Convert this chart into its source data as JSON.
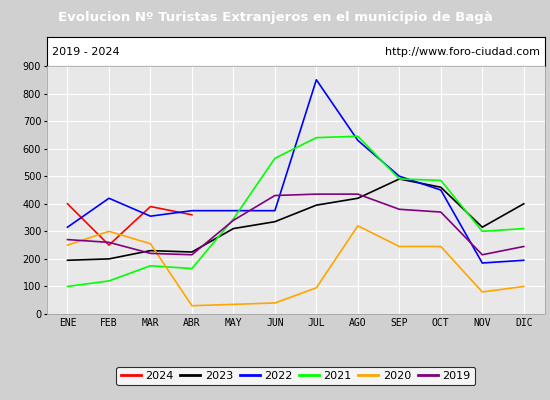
{
  "title": "Evolucion Nº Turistas Extranjeros en el municipio de Bagà",
  "subtitle_left": "2019 - 2024",
  "subtitle_right": "http://www.foro-ciudad.com",
  "xlabel_months": [
    "ENE",
    "FEB",
    "MAR",
    "ABR",
    "MAY",
    "JUN",
    "JUL",
    "AGO",
    "SEP",
    "OCT",
    "NOV",
    "DIC"
  ],
  "ylim": [
    0,
    900
  ],
  "yticks": [
    0,
    100,
    200,
    300,
    400,
    500,
    600,
    700,
    800,
    900
  ],
  "title_bg": "#4a86c8",
  "title_color": "white",
  "plot_bg": "#e8e8e8",
  "grid_color": "white",
  "outer_bg": "#d0d0d0",
  "series": {
    "2024": {
      "color": "red",
      "data": [
        400,
        250,
        390,
        360,
        null,
        null,
        null,
        null,
        null,
        null,
        null,
        null
      ]
    },
    "2023": {
      "color": "black",
      "data": [
        195,
        200,
        230,
        225,
        310,
        335,
        395,
        420,
        490,
        460,
        315,
        400
      ]
    },
    "2022": {
      "color": "blue",
      "data": [
        315,
        420,
        355,
        375,
        375,
        375,
        850,
        630,
        500,
        450,
        185,
        195
      ]
    },
    "2021": {
      "color": "lime",
      "data": [
        100,
        120,
        175,
        165,
        345,
        565,
        640,
        645,
        490,
        485,
        300,
        310
      ]
    },
    "2020": {
      "color": "orange",
      "data": [
        250,
        300,
        255,
        30,
        35,
        40,
        95,
        320,
        245,
        245,
        80,
        100
      ]
    },
    "2019": {
      "color": "purple",
      "data": [
        270,
        260,
        220,
        215,
        340,
        430,
        435,
        435,
        380,
        370,
        215,
        245
      ]
    }
  },
  "legend_order": [
    "2024",
    "2023",
    "2022",
    "2021",
    "2020",
    "2019"
  ]
}
